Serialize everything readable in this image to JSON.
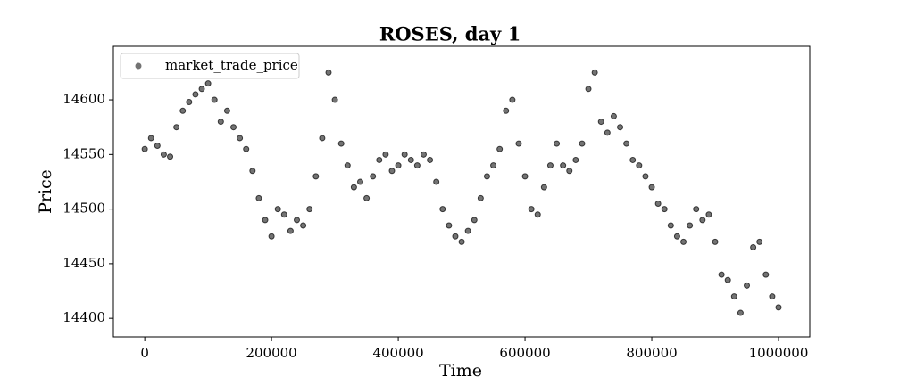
{
  "chart_data": {
    "type": "scatter",
    "title": "ROSES, day 1",
    "xlabel": "Time",
    "ylabel": "Price",
    "series": [
      {
        "name": "market_trade_price",
        "color": "#000000",
        "x": [
          0,
          10000,
          20000,
          30000,
          40000,
          50000,
          60000,
          70000,
          80000,
          90000,
          100000,
          110000,
          120000,
          130000,
          140000,
          150000,
          160000,
          170000,
          180000,
          190000,
          200000,
          210000,
          220000,
          230000,
          240000,
          250000,
          260000,
          270000,
          280000,
          290000,
          300000,
          310000,
          320000,
          330000,
          340000,
          350000,
          360000,
          370000,
          380000,
          390000,
          400000,
          410000,
          420000,
          430000,
          440000,
          450000,
          460000,
          470000,
          480000,
          490000,
          500000,
          510000,
          520000,
          530000,
          540000,
          550000,
          560000,
          570000,
          580000,
          590000,
          600000,
          610000,
          620000,
          630000,
          640000,
          650000,
          660000,
          670000,
          680000,
          690000,
          700000,
          710000,
          720000,
          730000,
          740000,
          750000,
          760000,
          770000,
          780000,
          790000,
          800000,
          810000,
          820000,
          830000,
          840000,
          850000,
          860000,
          870000,
          880000,
          890000,
          900000,
          910000,
          920000,
          930000,
          940000,
          950000,
          960000,
          970000,
          980000,
          990000,
          1000000
        ],
        "values": [
          14555,
          14565,
          14558,
          14550,
          14548,
          14575,
          14590,
          14598,
          14605,
          14610,
          14615,
          14600,
          14580,
          14590,
          14575,
          14565,
          14555,
          14535,
          14510,
          14490,
          14475,
          14500,
          14495,
          14480,
          14490,
          14485,
          14500,
          14530,
          14565,
          14625,
          14600,
          14560,
          14540,
          14520,
          14525,
          14510,
          14530,
          14545,
          14550,
          14535,
          14540,
          14550,
          14545,
          14540,
          14550,
          14545,
          14525,
          14500,
          14485,
          14475,
          14470,
          14480,
          14490,
          14510,
          14530,
          14540,
          14555,
          14590,
          14600,
          14560,
          14530,
          14500,
          14495,
          14520,
          14540,
          14560,
          14540,
          14535,
          14545,
          14560,
          14610,
          14625,
          14580,
          14570,
          14585,
          14575,
          14560,
          14545,
          14540,
          14530,
          14520,
          14505,
          14500,
          14485,
          14475,
          14470,
          14485,
          14500,
          14490,
          14495,
          14470,
          14440,
          14435,
          14420,
          14405,
          14430,
          14465,
          14470,
          14440,
          14420,
          14410
        ]
      }
    ],
    "xlim": [
      -49500,
      1049300
    ],
    "ylim": [
      14383,
      14649
    ],
    "xticks": [
      0,
      200000,
      400000,
      600000,
      800000,
      1000000
    ],
    "yticks": [
      14400,
      14450,
      14500,
      14550,
      14600
    ],
    "legend": "upper left"
  }
}
